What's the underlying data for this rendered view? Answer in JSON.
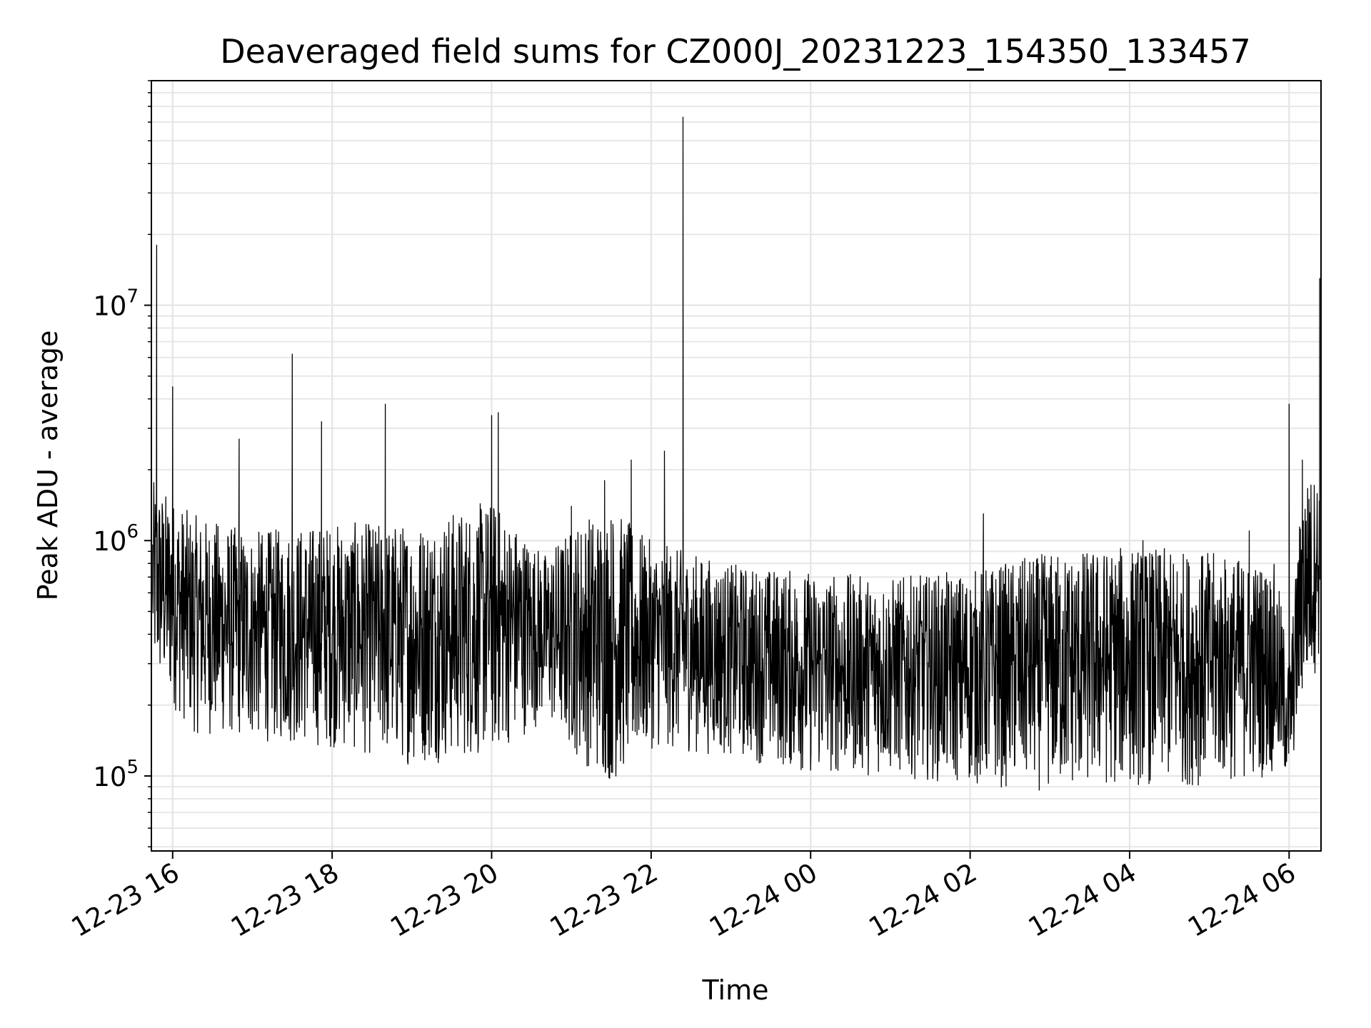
{
  "chart_data": {
    "type": "line",
    "title": "Deaveraged field sums for CZ000J_20231223_154350_133457",
    "xlabel": "Time",
    "ylabel": "Peak ADU - average",
    "yscale": "log",
    "ylim": [
      48000,
      90000000
    ],
    "xlim": [
      "2023-12-23 15:44",
      "2023-12-24 06:24"
    ],
    "grid": true,
    "line_color": "#000000",
    "grid_color": "#e5e5e5",
    "x_ticks": [
      {
        "label": "12-23 16",
        "t": "2023-12-23 16:00"
      },
      {
        "label": "12-23 18",
        "t": "2023-12-23 18:00"
      },
      {
        "label": "12-23 20",
        "t": "2023-12-23 20:00"
      },
      {
        "label": "12-23 22",
        "t": "2023-12-23 22:00"
      },
      {
        "label": "12-24 00",
        "t": "2023-12-24 00:00"
      },
      {
        "label": "12-24 02",
        "t": "2023-12-24 02:00"
      },
      {
        "label": "12-24 04",
        "t": "2023-12-24 04:00"
      },
      {
        "label": "12-24 06",
        "t": "2023-12-24 06:00"
      }
    ],
    "y_ticks": [
      {
        "base": "10",
        "exp": "5",
        "value": 100000
      },
      {
        "base": "10",
        "exp": "6",
        "value": 1000000
      },
      {
        "base": "10",
        "exp": "7",
        "value": 10000000
      }
    ],
    "series": [
      {
        "x": [
          "2023-12-23 15:45",
          "2023-12-23 15:48",
          "2023-12-23 15:52",
          "2023-12-23 16:00",
          "2023-12-23 16:15",
          "2023-12-23 16:30",
          "2023-12-23 16:50",
          "2023-12-23 17:10",
          "2023-12-23 17:30",
          "2023-12-23 17:45",
          "2023-12-23 17:52",
          "2023-12-23 18:00",
          "2023-12-23 18:20",
          "2023-12-23 18:40",
          "2023-12-23 18:50",
          "2023-12-23 19:00",
          "2023-12-23 19:20",
          "2023-12-23 19:40",
          "2023-12-23 20:00",
          "2023-12-23 20:05",
          "2023-12-23 20:20",
          "2023-12-23 20:30",
          "2023-12-23 20:45",
          "2023-12-23 21:00",
          "2023-12-23 21:15",
          "2023-12-23 21:25",
          "2023-12-23 21:35",
          "2023-12-23 21:45",
          "2023-12-23 22:00",
          "2023-12-23 22:10",
          "2023-12-23 22:20",
          "2023-12-23 22:24",
          "2023-12-23 22:30",
          "2023-12-23 22:50",
          "2023-12-23 23:10",
          "2023-12-23 23:30",
          "2023-12-23 23:50",
          "2023-12-24 00:10",
          "2023-12-24 00:30",
          "2023-12-24 00:50",
          "2023-12-24 01:10",
          "2023-12-24 01:30",
          "2023-12-24 01:50",
          "2023-12-24 02:10",
          "2023-12-24 02:30",
          "2023-12-24 02:50",
          "2023-12-24 03:10",
          "2023-12-24 03:30",
          "2023-12-24 03:50",
          "2023-12-24 04:10",
          "2023-12-24 04:30",
          "2023-12-24 04:50",
          "2023-12-24 05:10",
          "2023-12-24 05:30",
          "2023-12-24 05:45",
          "2023-12-24 05:55",
          "2023-12-24 06:00",
          "2023-12-24 06:05",
          "2023-12-24 06:10",
          "2023-12-24 06:15",
          "2023-12-24 06:20",
          "2023-12-24 06:23"
        ],
        "y": [
          600000,
          18000000,
          800000,
          4500000,
          600000,
          400000,
          2700000,
          500000,
          6200000,
          300000,
          3200000,
          400000,
          500000,
          3800000,
          600000,
          400000,
          500000,
          600000,
          3400000,
          3500000,
          800000,
          400000,
          500000,
          1400000,
          300000,
          1800000,
          400000,
          2200000,
          400000,
          2400000,
          400000,
          63000000,
          450000,
          400000,
          420000,
          400000,
          450000,
          350000,
          380000,
          400000,
          380000,
          420000,
          380000,
          1300000,
          400000,
          450000,
          500000,
          450000,
          480000,
          1000000,
          500000,
          450000,
          480000,
          1100000,
          500000,
          200000,
          3800000,
          600000,
          2200000,
          1500000,
          800000,
          13000000
        ]
      }
    ],
    "envelope": {
      "x": [
        "2023-12-23 15:45",
        "2023-12-23 16:15",
        "2023-12-23 17:00",
        "2023-12-23 18:00",
        "2023-12-23 19:00",
        "2023-12-23 20:00",
        "2023-12-23 20:40",
        "2023-12-23 21:10",
        "2023-12-23 21:30",
        "2023-12-23 22:00",
        "2023-12-23 23:00",
        "2023-12-24 00:00",
        "2023-12-24 01:00",
        "2023-12-24 02:00",
        "2023-12-24 03:00",
        "2023-12-24 04:00",
        "2023-12-24 05:00",
        "2023-12-24 05:50",
        "2023-12-24 06:00",
        "2023-12-24 06:10",
        "2023-12-24 06:23"
      ],
      "low": [
        250000,
        150000,
        140000,
        130000,
        110000,
        120000,
        170000,
        110000,
        90000,
        130000,
        120000,
        100000,
        100000,
        90000,
        85000,
        90000,
        90000,
        100000,
        90000,
        200000,
        300000
      ],
      "high": [
        1800000,
        1300000,
        1100000,
        1200000,
        1200000,
        1500000,
        900000,
        1300000,
        1400000,
        1000000,
        800000,
        750000,
        700000,
        750000,
        900000,
        950000,
        900000,
        800000,
        300000,
        1800000,
        2000000
      ]
    }
  }
}
